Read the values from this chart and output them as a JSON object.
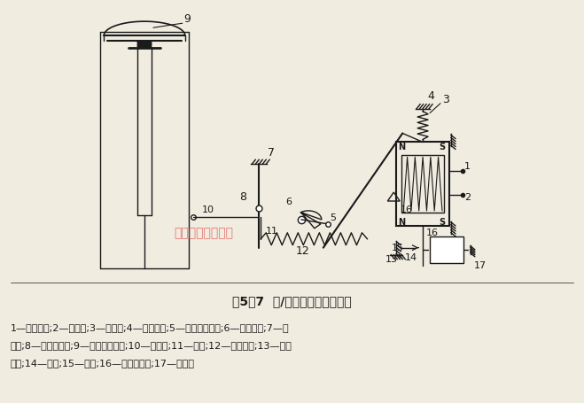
{
  "title": "图5－7  电/气阀门定位器原理图",
  "caption_line1": "1—力矩马达;2—导磁体;3—主杠杆;4—平衡弹簧;5—反馈凸轮支点;6—反馈凸轮;7—副",
  "caption_line2": "杠杆;8—副杠杆支点;9—气动执行机构;10—反馈杆;11—滚动;12—反馈弹簧;13—调零",
  "caption_line3": "弹簧;14—挡板;15—喷嘴;16—主杠杆支点;17—放大器",
  "watermark": "上海湖泉电动阀门",
  "bg_color": "#f0ece0",
  "line_color": "#1a1a1a",
  "watermark_color": "#e05050"
}
